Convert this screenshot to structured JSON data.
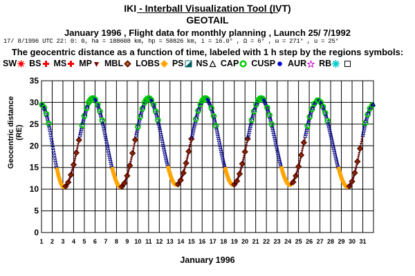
{
  "header": {
    "title": "IKI - Interball Visualization Tool (IVT)",
    "subtitle": "GEOTAIL",
    "planning_line": "January 1996 ,  Flight data for monthly planning ,   Launch 25/ 7/1992",
    "orbit_line": "17/ 8/1996 UTC 22: 0: 0, ha = 188608 km, hp =  58826 km, i = 16.0° , Ω =   6° , ω = 271° , u =  25°",
    "description": "The geocentric distance as a function of time, labeled with 1 h step by the regions symbols:"
  },
  "legend": [
    {
      "label": "SW",
      "color": "#ff0000",
      "icon": "sun-icon"
    },
    {
      "label": "BS",
      "color": "#ff0000",
      "icon": "cross-icon"
    },
    {
      "label": "MS",
      "color": "#ff0000",
      "icon": "cross-icon"
    },
    {
      "label": "MP",
      "color": "#800000",
      "icon": "triangle-down-icon"
    },
    {
      "label": "MBL",
      "color": "#8b2500",
      "icon": "diamond-icon"
    },
    {
      "label": "LOBS",
      "color": "#ffa500",
      "icon": "star-burst-icon"
    },
    {
      "label": "PS",
      "color": "#006060",
      "icon": "half-square-icon"
    },
    {
      "label": "NS",
      "color": "#000000",
      "icon": "triangle-up-icon"
    },
    {
      "label": "CAP",
      "color": "#00cc00",
      "icon": "ring-icon"
    },
    {
      "label": "CUSP",
      "color": "#0000cc",
      "icon": "dot-icon"
    },
    {
      "label": "AUR",
      "color": "#cc00cc",
      "icon": "star-icon"
    },
    {
      "label": "RB",
      "color": "#00cccc",
      "icon": "asterisk-icon"
    }
  ],
  "legend_tail_symbol": "square-icon",
  "chart_data": {
    "type": "line",
    "title": "The geocentric distance as a function of time, labeled with 1 h step by the regions symbols:",
    "xlabel": "January 1996",
    "ylabel": "Geocentric distance (RE)",
    "xlim": [
      1,
      32
    ],
    "ylim": [
      0,
      35
    ],
    "x_ticks": [
      "1",
      "2",
      "3",
      "4",
      "5",
      "6",
      "7",
      "8",
      "9",
      "10",
      "11",
      "12",
      "13",
      "14",
      "15",
      "16",
      "17",
      "18",
      "19",
      "20",
      "21",
      "22",
      "23",
      "24",
      "25",
      "26",
      "27",
      "28",
      "29",
      "30",
      "31"
    ],
    "y_ticks": [
      "0",
      "5",
      "10",
      "15",
      "20",
      "25",
      "30",
      "35"
    ],
    "grid": true,
    "apogees": [
      {
        "day": 5.8,
        "distance": 31
      },
      {
        "day": 11.0,
        "distance": 31
      },
      {
        "day": 16.3,
        "distance": 31
      },
      {
        "day": 21.5,
        "distance": 31
      },
      {
        "day": 26.8,
        "distance": 30.5
      }
    ],
    "perigees": [
      {
        "day": 3.1,
        "distance": 10.5
      },
      {
        "day": 8.4,
        "distance": 10.5
      },
      {
        "day": 13.6,
        "distance": 11
      },
      {
        "day": 18.9,
        "distance": 11
      },
      {
        "day": 24.2,
        "distance": 11
      },
      {
        "day": 29.6,
        "distance": 10.5
      }
    ],
    "start": {
      "day": 1.0,
      "distance": 29.5
    },
    "end": {
      "day": 32.0,
      "distance": 29.5
    }
  }
}
